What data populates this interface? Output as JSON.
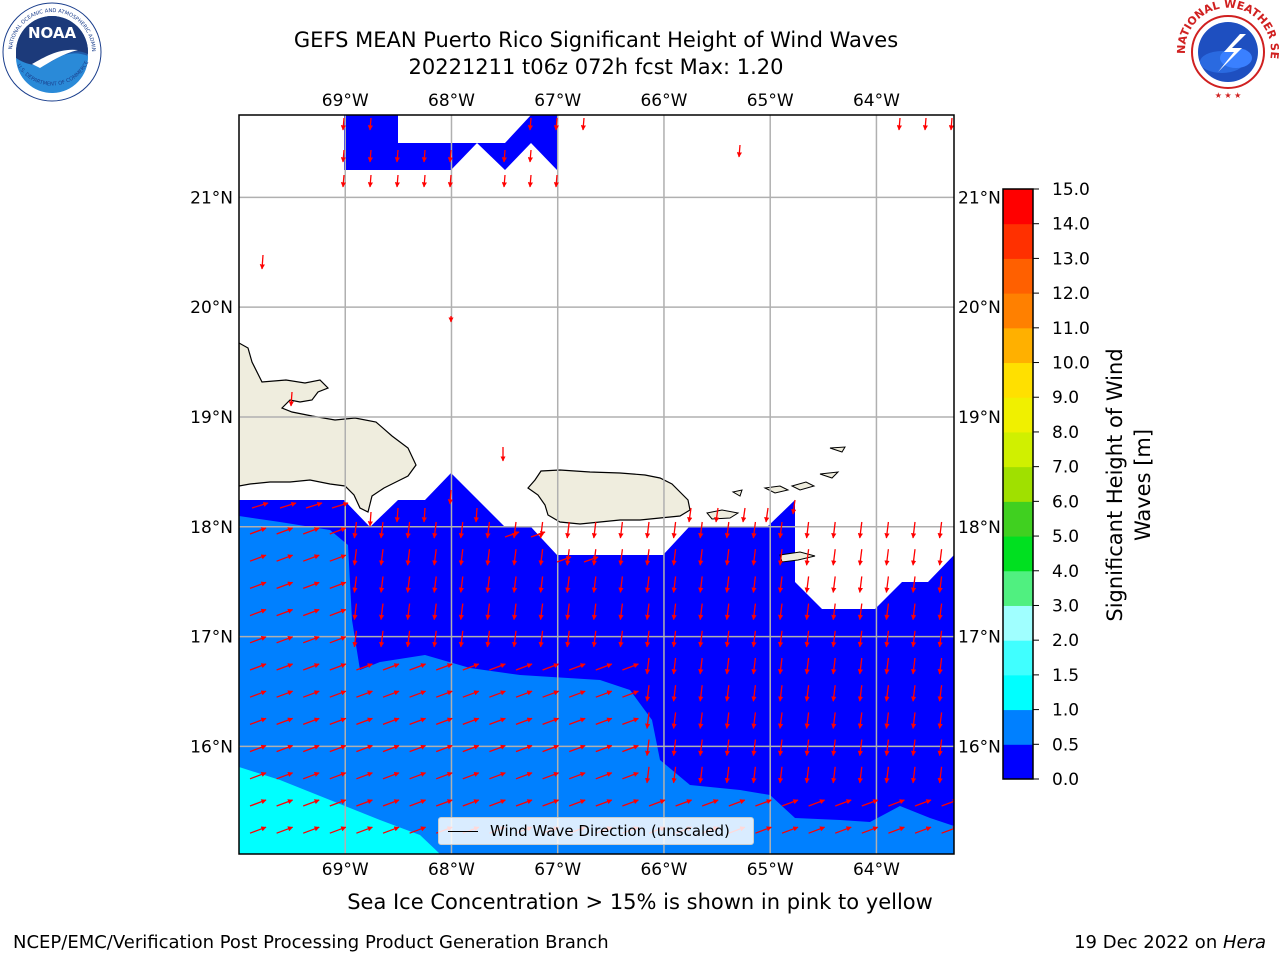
{
  "header": {
    "title_line1": "GEFS MEAN Puerto Rico Significant Height of Wind Waves",
    "title_line2": "20221211 t06z 072h fcst   Max: 1.20"
  },
  "logos": {
    "noaa": "NOAA",
    "noaa_ring_text": "NATIONAL OCEANIC AND ATMOSPHERIC ADMINISTRATION",
    "noaa_ring_bottom": "U.S. DEPARTMENT OF COMMERCE",
    "nws_ring_text": "NATIONAL WEATHER SERVICE"
  },
  "map": {
    "lon_labels": [
      "69°W",
      "68°W",
      "67°W",
      "66°W",
      "65°W",
      "64°W"
    ],
    "lon_values": [
      -69,
      -68,
      -67,
      -66,
      -65,
      -64
    ],
    "lat_labels": [
      "21°N",
      "20°N",
      "19°N",
      "18°N",
      "17°N",
      "16°N"
    ],
    "lat_values": [
      21,
      20,
      19,
      18,
      17,
      16
    ],
    "lon_range": [
      -70,
      -63.27
    ],
    "lat_range": [
      15.02,
      21.75
    ],
    "colors": {
      "land": "#efedde",
      "band_0_0.5": "#0000ff",
      "band_0.5_1.0": "#0080ff",
      "band_1.0_1.5": "#00ffff",
      "grid": "#b0b0b0",
      "arrow": "#ff0000"
    },
    "legend_label": "Wind Wave Direction (unscaled)"
  },
  "colorbar": {
    "label_line1": "Significant Height of Wind",
    "label_line2": "Waves [m]",
    "ticks": [
      "0.0",
      "0.5",
      "1.0",
      "1.5",
      "2.0",
      "3.0",
      "4.0",
      "5.0",
      "6.0",
      "7.0",
      "8.0",
      "9.0",
      "10.0",
      "11.0",
      "12.0",
      "13.0",
      "14.0",
      "15.0"
    ],
    "colors": [
      "#0000ff",
      "#0080ff",
      "#00ffff",
      "#40ffff",
      "#a0ffff",
      "#50f080",
      "#00e020",
      "#40d020",
      "#a0e000",
      "#d0f000",
      "#f0f000",
      "#ffe000",
      "#ffb000",
      "#ff8000",
      "#ff6000",
      "#ff3000",
      "#ff0000"
    ]
  },
  "notes": {
    "sea_ice": "Sea Ice Concentration > 15% is shown in pink to yellow"
  },
  "footer": {
    "left": "NCEP/EMC/Verification Post Processing Product Generation Branch",
    "right_prefix": "19 Dec 2022 on ",
    "right_italic": "Hera"
  }
}
